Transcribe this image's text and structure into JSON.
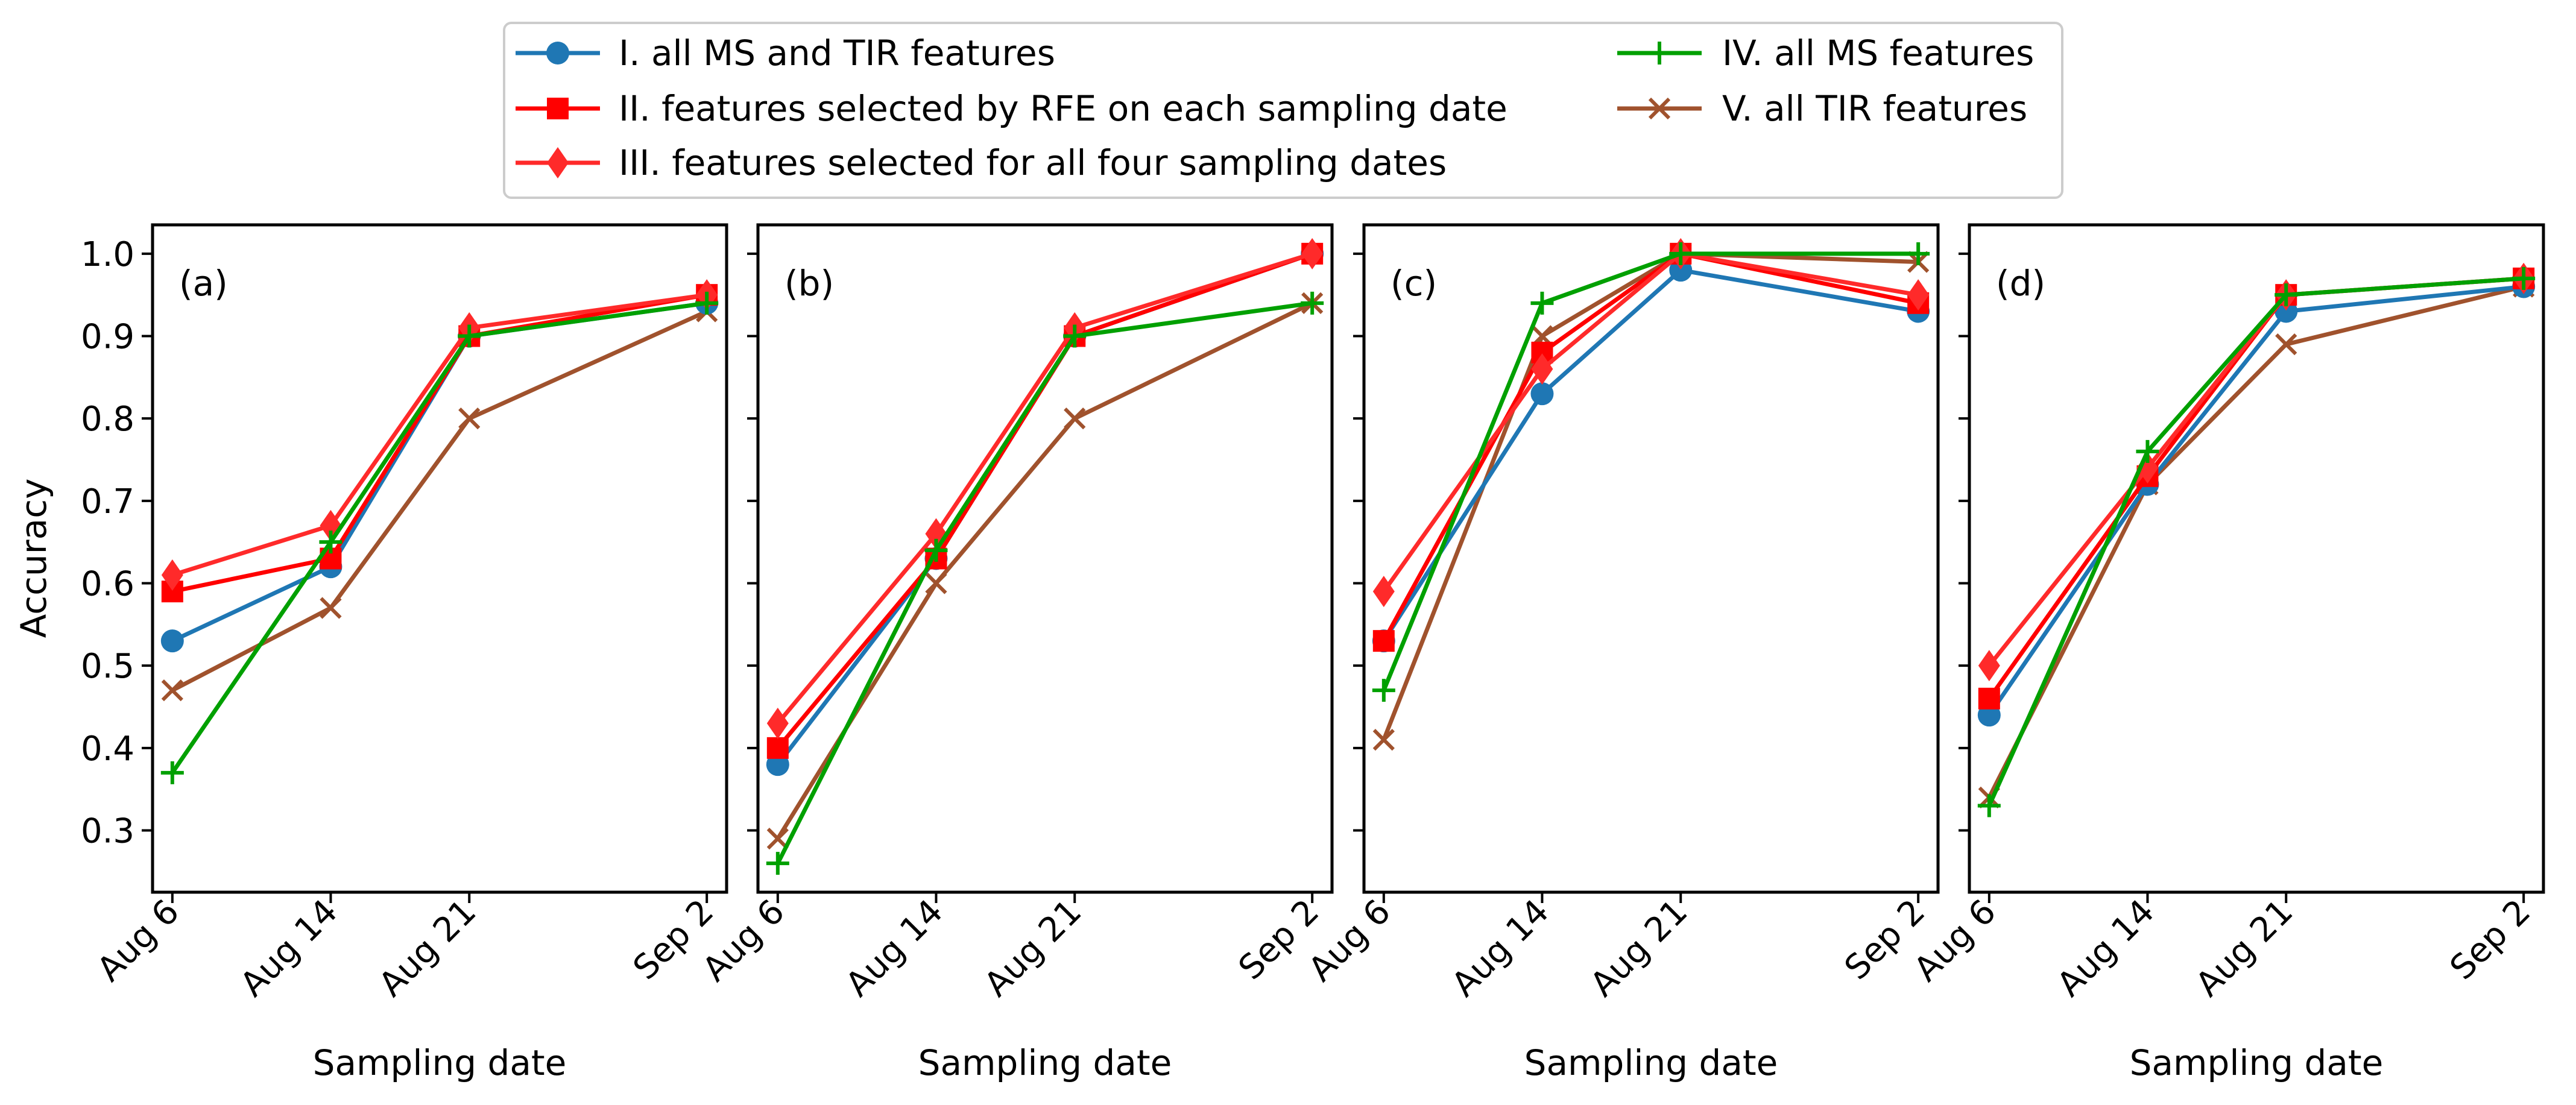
{
  "chart_data": {
    "type": "line",
    "ylabel": "Accuracy",
    "xlabel": "Sampling date",
    "x_categories": [
      "Aug 6",
      "Aug 14",
      "Aug 21",
      "Sep 2"
    ],
    "x_positions": [
      6,
      14,
      21,
      33
    ],
    "xlim": [
      5,
      34
    ],
    "ylim": [
      0.225,
      1.035
    ],
    "yticks": [
      0.3,
      0.4,
      0.5,
      0.6,
      0.7,
      0.8,
      0.9,
      1.0
    ],
    "ytick_labels": [
      "0.3",
      "0.4",
      "0.5",
      "0.6",
      "0.7",
      "0.8",
      "0.9",
      "1.0"
    ],
    "legend": {
      "placement": "top-center",
      "columns": 2,
      "entries": [
        {
          "key": "I",
          "label": "I. all MS and TIR features",
          "color": "#1f77b4",
          "marker": "circle"
        },
        {
          "key": "II",
          "label": "II. features selected by RFE on each sampling date",
          "color": "#ff0000",
          "marker": "square"
        },
        {
          "key": "III",
          "label": "III. features selected for all four sampling dates",
          "color": "#ff2a2a",
          "marker": "diamond"
        },
        {
          "key": "IV",
          "label": "IV. all MS features",
          "color": "#00a000",
          "marker": "plus"
        },
        {
          "key": "V",
          "label": "V. all TIR features",
          "color": "#a0522d",
          "marker": "x"
        }
      ]
    },
    "panels": [
      {
        "label": "(a)",
        "series": [
          {
            "key": "V",
            "values": [
              0.47,
              0.57,
              0.8,
              0.93
            ]
          },
          {
            "key": "I",
            "values": [
              0.53,
              0.62,
              0.9,
              0.94
            ]
          },
          {
            "key": "II",
            "values": [
              0.59,
              0.63,
              0.9,
              0.95
            ]
          },
          {
            "key": "III",
            "values": [
              0.61,
              0.67,
              0.91,
              0.95
            ]
          },
          {
            "key": "IV",
            "values": [
              0.37,
              0.65,
              0.9,
              0.94
            ]
          }
        ]
      },
      {
        "label": "(b)",
        "series": [
          {
            "key": "V",
            "values": [
              0.29,
              0.6,
              0.8,
              0.94
            ]
          },
          {
            "key": "I",
            "values": [
              0.38,
              0.63,
              0.9,
              1.0
            ]
          },
          {
            "key": "II",
            "values": [
              0.4,
              0.63,
              0.9,
              1.0
            ]
          },
          {
            "key": "III",
            "values": [
              0.43,
              0.66,
              0.91,
              1.0
            ]
          },
          {
            "key": "IV",
            "values": [
              0.26,
              0.64,
              0.9,
              0.94
            ]
          }
        ]
      },
      {
        "label": "(c)",
        "series": [
          {
            "key": "V",
            "values": [
              0.41,
              0.9,
              1.0,
              0.99
            ]
          },
          {
            "key": "I",
            "values": [
              0.53,
              0.83,
              0.98,
              0.93
            ]
          },
          {
            "key": "II",
            "values": [
              0.53,
              0.88,
              1.0,
              0.94
            ]
          },
          {
            "key": "III",
            "values": [
              0.59,
              0.86,
              1.0,
              0.95
            ]
          },
          {
            "key": "IV",
            "values": [
              0.47,
              0.94,
              1.0,
              1.0
            ]
          }
        ]
      },
      {
        "label": "(d)",
        "series": [
          {
            "key": "V",
            "values": [
              0.34,
              0.72,
              0.89,
              0.96
            ]
          },
          {
            "key": "I",
            "values": [
              0.44,
              0.72,
              0.93,
              0.96
            ]
          },
          {
            "key": "II",
            "values": [
              0.46,
              0.73,
              0.95,
              0.97
            ]
          },
          {
            "key": "III",
            "values": [
              0.5,
              0.74,
              0.95,
              0.97
            ]
          },
          {
            "key": "IV",
            "values": [
              0.33,
              0.76,
              0.95,
              0.97
            ]
          }
        ]
      }
    ]
  }
}
